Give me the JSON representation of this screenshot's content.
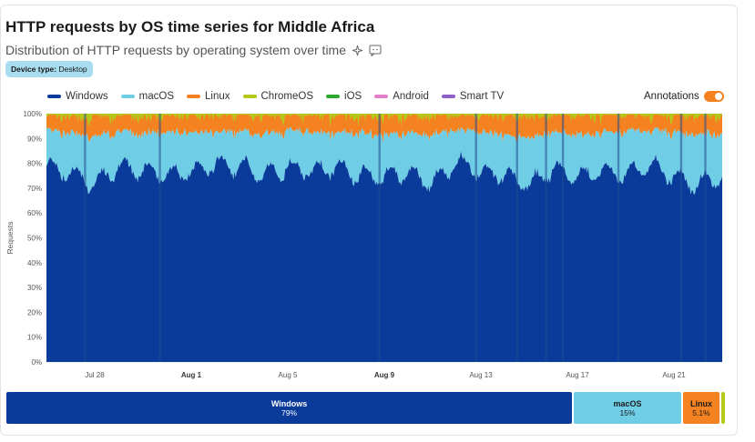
{
  "title": "HTTP requests by OS time series for Middle Africa",
  "subtitle": "Distribution of HTTP requests by operating system over time",
  "filter": {
    "label": "Device type:",
    "value": "Desktop"
  },
  "annotations_label": "Annotations",
  "annotations_on": true,
  "icons": {
    "sparkle": "sparkle-icon",
    "comment": "comment-icon"
  },
  "chart_data": {
    "type": "area",
    "stacked": true,
    "normalized": true,
    "ylabel": "Requests",
    "yticks": [
      "0%",
      "10%",
      "20%",
      "30%",
      "40%",
      "50%",
      "60%",
      "70%",
      "80%",
      "90%",
      "100%"
    ],
    "ylim": [
      0,
      100
    ],
    "xlim": [
      "2025-07-26",
      "2025-08-23"
    ],
    "xticks": [
      {
        "label": "Jul 28",
        "date": "2025-07-28",
        "bold": false
      },
      {
        "label": "Aug 1",
        "date": "2025-08-01",
        "bold": true
      },
      {
        "label": "Aug 5",
        "date": "2025-08-05",
        "bold": false
      },
      {
        "label": "Aug 9",
        "date": "2025-08-09",
        "bold": true
      },
      {
        "label": "Aug 13",
        "date": "2025-08-13",
        "bold": false
      },
      {
        "label": "Aug 17",
        "date": "2025-08-17",
        "bold": false
      },
      {
        "label": "Aug 21",
        "date": "2025-08-21",
        "bold": false
      }
    ],
    "legend_position": "top-left",
    "series": [
      {
        "name": "Windows",
        "color": "#0a3b9a",
        "share_percent": 79
      },
      {
        "name": "macOS",
        "color": "#6fcde6",
        "share_percent": 15
      },
      {
        "name": "Linux",
        "color": "#f58220",
        "share_percent": 5.1
      },
      {
        "name": "ChromeOS",
        "color": "#b5c81a",
        "share_percent": 0.6
      },
      {
        "name": "iOS",
        "color": "#2fa82f",
        "share_percent": 0.1
      },
      {
        "name": "Android",
        "color": "#e27ec8",
        "share_percent": 0.05
      },
      {
        "name": "Smart TV",
        "color": "#8d5fc7",
        "share_percent": 0.05
      }
    ],
    "windows_daily_percent": [
      {
        "date": "2025-07-26",
        "value": 79
      },
      {
        "date": "2025-07-27",
        "value": 77
      },
      {
        "date": "2025-07-28",
        "value": 72
      },
      {
        "date": "2025-07-29",
        "value": 79
      },
      {
        "date": "2025-07-30",
        "value": 78
      },
      {
        "date": "2025-07-31",
        "value": 76
      },
      {
        "date": "2025-08-01",
        "value": 77
      },
      {
        "date": "2025-08-02",
        "value": 80
      },
      {
        "date": "2025-08-03",
        "value": 79
      },
      {
        "date": "2025-08-04",
        "value": 76
      },
      {
        "date": "2025-08-05",
        "value": 79
      },
      {
        "date": "2025-08-06",
        "value": 77
      },
      {
        "date": "2025-08-07",
        "value": 79
      },
      {
        "date": "2025-08-08",
        "value": 76
      },
      {
        "date": "2025-08-09",
        "value": 75
      },
      {
        "date": "2025-08-10",
        "value": 77
      },
      {
        "date": "2025-08-11",
        "value": 72
      },
      {
        "date": "2025-08-12",
        "value": 81
      },
      {
        "date": "2025-08-13",
        "value": 77
      },
      {
        "date": "2025-08-14",
        "value": 76
      },
      {
        "date": "2025-08-15",
        "value": 72
      },
      {
        "date": "2025-08-16",
        "value": 78
      },
      {
        "date": "2025-08-17",
        "value": 75
      },
      {
        "date": "2025-08-18",
        "value": 78
      },
      {
        "date": "2025-08-19",
        "value": 76
      },
      {
        "date": "2025-08-20",
        "value": 80
      },
      {
        "date": "2025-08-21",
        "value": 75
      },
      {
        "date": "2025-08-22",
        "value": 72
      },
      {
        "date": "2025-08-23",
        "value": 76
      }
    ],
    "macos_daily_percent": [
      15,
      16,
      19,
      14,
      15,
      17,
      16,
      13,
      14,
      16,
      15,
      16,
      14,
      17,
      17,
      16,
      20,
      13,
      16,
      16,
      19,
      15,
      17,
      15,
      17,
      14,
      18,
      20,
      17
    ],
    "linux_daily_percent": [
      5,
      6,
      7,
      6,
      6,
      6,
      6,
      6,
      6,
      7,
      5,
      6,
      6,
      6,
      7,
      6,
      7,
      5,
      6,
      7,
      8,
      6,
      7,
      6,
      6,
      5,
      6,
      7,
      6
    ],
    "annotation_markers": [
      {
        "date": "2025-07-27.6",
        "label": ""
      },
      {
        "date": "2025-07-30.7",
        "label": ""
      },
      {
        "date": "2025-08-08.8",
        "label": ""
      },
      {
        "date": "2025-08-12.8",
        "label": ""
      },
      {
        "date": "2025-08-14.5",
        "label": ""
      },
      {
        "date": "2025-08-15.7",
        "label": ""
      },
      {
        "date": "2025-08-16.4",
        "label": ""
      },
      {
        "date": "2025-08-18.7",
        "label": ""
      },
      {
        "date": "2025-08-21.3",
        "label": ""
      },
      {
        "date": "2025-08-22.3",
        "label": ""
      }
    ],
    "summary": [
      {
        "name": "Windows",
        "label": "79%",
        "share": 79,
        "color": "#0a3b9a",
        "text_color": "#ffffff"
      },
      {
        "name": "macOS",
        "label": "15%",
        "share": 15,
        "color": "#6fcde6",
        "text_color": "#1a1a1a"
      },
      {
        "name": "Linux",
        "label": "5.1%",
        "share": 5.1,
        "color": "#f58220",
        "text_color": "#1a1a1a"
      },
      {
        "name": "",
        "label": "",
        "share": 0.5,
        "color": "#b5c81a",
        "text_color": "#1a1a1a"
      }
    ]
  }
}
